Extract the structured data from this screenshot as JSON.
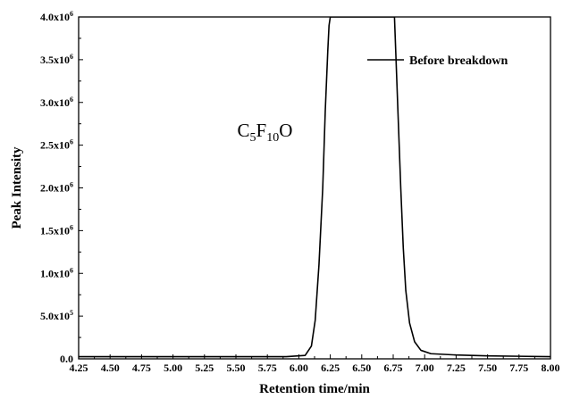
{
  "chart_data": {
    "type": "line",
    "xlabel": "Retention time/min",
    "ylabel": "Peak Intensity",
    "xlim": [
      4.25,
      8.0
    ],
    "ylim": [
      0,
      4000000
    ],
    "x_ticks": [
      4.25,
      4.5,
      4.75,
      5.0,
      5.25,
      5.5,
      5.75,
      6.0,
      6.25,
      6.5,
      6.75,
      7.0,
      7.25,
      7.5,
      7.75,
      8.0
    ],
    "x_tick_labels": [
      "4.25",
      "4.50",
      "4.75",
      "5.00",
      "5.25",
      "5.50",
      "5.75",
      "6.00",
      "6.25",
      "6.50",
      "6.75",
      "7.00",
      "7.25",
      "7.50",
      "7.75",
      "8.00"
    ],
    "y_ticks": [
      {
        "value": 0,
        "mantissa": "0.0",
        "exp": ""
      },
      {
        "value": 500000,
        "mantissa": "5.0x10",
        "exp": "5"
      },
      {
        "value": 1000000,
        "mantissa": "1.0x10",
        "exp": "6"
      },
      {
        "value": 1500000,
        "mantissa": "1.5x10",
        "exp": "6"
      },
      {
        "value": 2000000,
        "mantissa": "2.0x10",
        "exp": "6"
      },
      {
        "value": 2500000,
        "mantissa": "2.5x10",
        "exp": "6"
      },
      {
        "value": 3000000,
        "mantissa": "3.0x10",
        "exp": "6"
      },
      {
        "value": 3500000,
        "mantissa": "3.5x10",
        "exp": "6"
      },
      {
        "value": 4000000,
        "mantissa": "4.0x10",
        "exp": "6"
      }
    ],
    "grid": false,
    "legend_position": "top-right",
    "series": [
      {
        "name": "Before breakdown",
        "color": "#000000",
        "x": [
          4.25,
          5.0,
          5.5,
          5.9,
          6.05,
          6.1,
          6.13,
          6.16,
          6.19,
          6.21,
          6.23,
          6.24,
          6.25,
          6.5,
          6.76,
          6.77,
          6.79,
          6.81,
          6.83,
          6.85,
          6.88,
          6.92,
          6.97,
          7.05,
          7.25,
          7.5,
          7.75,
          8.0
        ],
        "y": [
          25000,
          25000,
          25000,
          25000,
          40000,
          150000,
          450000,
          1100000,
          2000000,
          2900000,
          3600000,
          3900000,
          4000000,
          4000000,
          4000000,
          3600000,
          2800000,
          2000000,
          1300000,
          800000,
          420000,
          200000,
          100000,
          60000,
          45000,
          35000,
          30000,
          25000
        ]
      }
    ],
    "annotations": [
      {
        "x": 5.95,
        "y": 2600000,
        "parts": [
          {
            "text": "C"
          },
          {
            "text": "5",
            "sub": true
          },
          {
            "text": "F"
          },
          {
            "text": "10",
            "sub": true
          },
          {
            "text": "O"
          }
        ]
      }
    ]
  }
}
